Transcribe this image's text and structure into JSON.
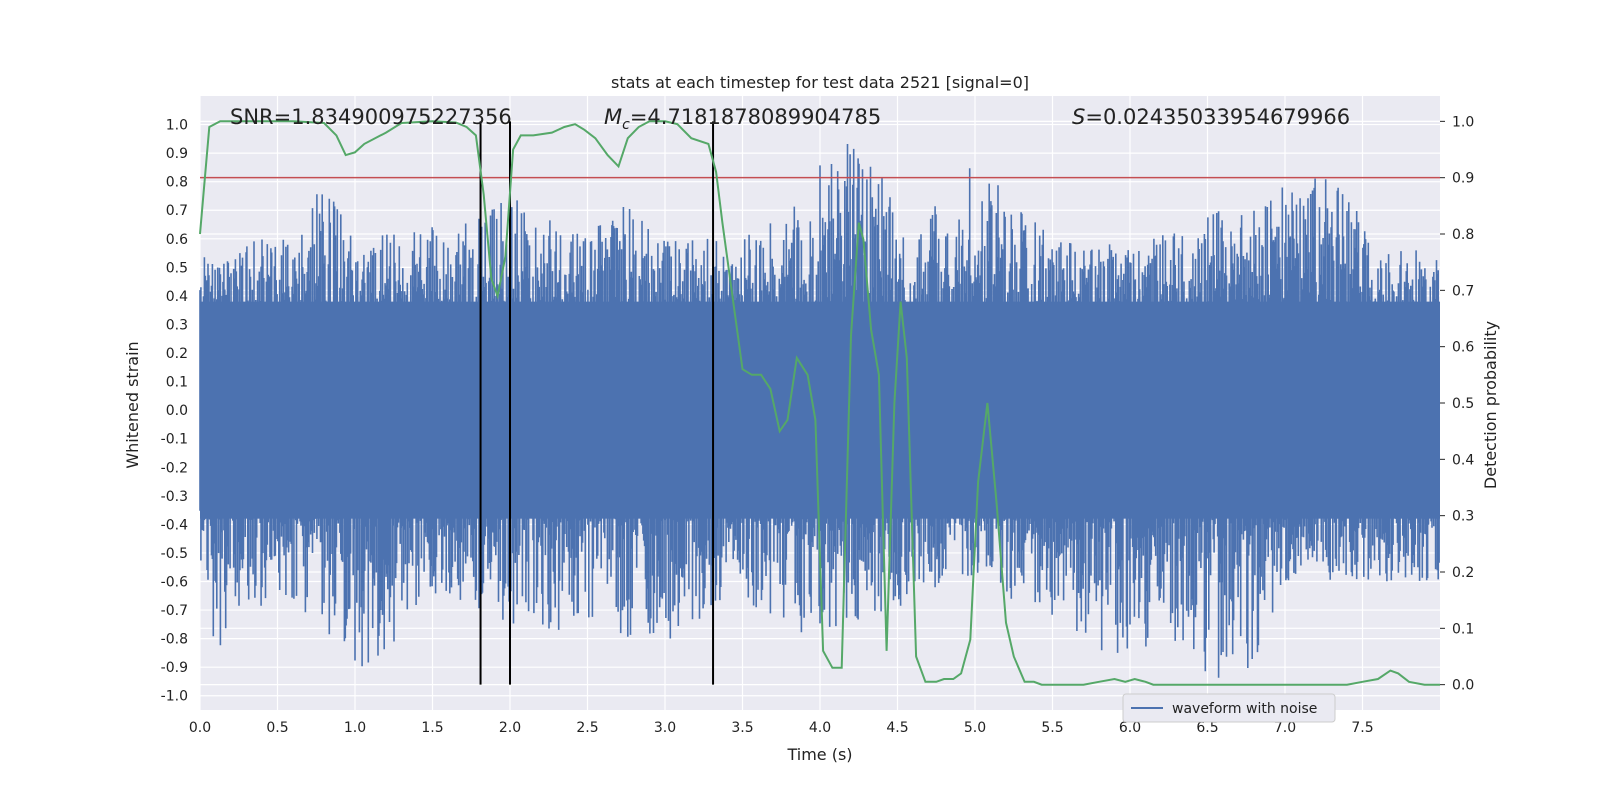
{
  "chart_data": {
    "type": "line",
    "title": "stats at each timestep for test data 2521 [signal=0]",
    "xlabel": "Time (s)",
    "ylabel": "Whitened strain",
    "y2label": "Detection probability",
    "xlim": [
      0.0,
      8.0
    ],
    "ylim": [
      -1.05,
      1.1
    ],
    "y2lim": [
      -0.045,
      1.045
    ],
    "xticks": [
      "0.0",
      "0.5",
      "1.0",
      "1.5",
      "2.0",
      "2.5",
      "3.0",
      "3.5",
      "4.0",
      "4.5",
      "5.0",
      "5.5",
      "6.0",
      "6.5",
      "7.0",
      "7.5"
    ],
    "yticks": [
      "1.0",
      "0.9",
      "0.8",
      "0.7",
      "0.6",
      "0.5",
      "0.4",
      "0.3",
      "0.2",
      "0.1",
      "0.0",
      "-0.1",
      "-0.2",
      "-0.3",
      "-0.4",
      "-0.5",
      "-0.6",
      "-0.7",
      "-0.8",
      "-0.9",
      "-1.0"
    ],
    "y2ticks": [
      "1.0",
      "0.9",
      "0.8",
      "0.7",
      "0.6",
      "0.5",
      "0.4",
      "0.3",
      "0.2",
      "0.1",
      "0.0"
    ],
    "grid": true,
    "legend_position": "bottom-right",
    "annotations": {
      "snr": "SNR=1.834900975227356",
      "mc": "=4.718187808990478​5",
      "mc_symbol": "M",
      "mc_sub": "c",
      "s": "=0.02435033954679966",
      "s_symbol": "S"
    },
    "series": [
      {
        "name": "waveform with noise",
        "axis": "left",
        "color": "#4c72b0",
        "kind": "noise",
        "upper_envelope": [
          [
            0.0,
            0.6
          ],
          [
            0.5,
            0.6
          ],
          [
            0.8,
            0.79
          ],
          [
            1.0,
            0.6
          ],
          [
            1.5,
            0.65
          ],
          [
            2.0,
            0.75
          ],
          [
            2.5,
            0.6
          ],
          [
            2.7,
            0.75
          ],
          [
            3.0,
            0.6
          ],
          [
            3.5,
            0.6
          ],
          [
            4.1,
            0.92
          ],
          [
            4.27,
            0.96
          ],
          [
            4.6,
            0.6
          ],
          [
            4.95,
            0.9
          ],
          [
            5.5,
            0.6
          ],
          [
            6.0,
            0.6
          ],
          [
            7.27,
            0.84
          ],
          [
            7.6,
            0.6
          ],
          [
            8.0,
            0.55
          ]
        ],
        "lower_envelope": [
          [
            0.0,
            -0.6
          ],
          [
            0.1,
            -0.85
          ],
          [
            0.5,
            -0.65
          ],
          [
            1.0,
            -0.93
          ],
          [
            1.27,
            -0.82
          ],
          [
            1.5,
            -0.65
          ],
          [
            2.0,
            -0.75
          ],
          [
            3.0,
            -0.82
          ],
          [
            3.5,
            -0.65
          ],
          [
            3.85,
            -0.82
          ],
          [
            4.2,
            -0.75
          ],
          [
            5.0,
            -0.6
          ],
          [
            5.9,
            -0.87
          ],
          [
            6.3,
            -0.85
          ],
          [
            6.72,
            -1.0
          ],
          [
            7.0,
            -0.6
          ],
          [
            8.0,
            -0.6
          ]
        ]
      },
      {
        "name": "",
        "axis": "right",
        "color": "#55a868",
        "x": [
          0.0,
          0.06,
          0.13,
          0.2,
          0.4,
          0.6,
          0.8,
          0.88,
          0.94,
          1.0,
          1.06,
          1.2,
          1.3,
          1.5,
          1.65,
          1.72,
          1.78,
          1.83,
          1.88,
          1.92,
          1.97,
          2.02,
          2.07,
          2.15,
          2.27,
          2.35,
          2.42,
          2.48,
          2.55,
          2.63,
          2.7,
          2.76,
          2.83,
          2.9,
          3.0,
          3.08,
          3.17,
          3.28,
          3.33,
          3.37,
          3.44,
          3.5,
          3.56,
          3.62,
          3.68,
          3.74,
          3.79,
          3.85,
          3.92,
          3.97,
          4.02,
          4.08,
          4.14,
          4.2,
          4.25,
          4.28,
          4.33,
          4.38,
          4.43,
          4.48,
          4.52,
          4.56,
          4.62,
          4.68,
          4.75,
          4.8,
          4.86,
          4.91,
          4.97,
          5.02,
          5.08,
          5.14,
          5.2,
          5.25,
          5.32,
          5.38,
          5.43,
          5.5,
          5.6,
          5.7,
          5.8,
          5.9,
          5.97,
          6.03,
          6.1,
          6.15,
          6.25,
          6.4,
          6.5,
          6.6,
          6.7,
          6.8,
          6.9,
          7.0,
          7.1,
          7.2,
          7.3,
          7.4,
          7.5,
          7.6,
          7.68,
          7.73,
          7.8,
          7.9,
          8.0
        ],
        "values": [
          0.8,
          0.99,
          1.0,
          1.0,
          1.0,
          1.0,
          0.997,
          0.975,
          0.94,
          0.945,
          0.96,
          0.98,
          0.997,
          1.0,
          0.998,
          0.99,
          0.975,
          0.87,
          0.72,
          0.69,
          0.76,
          0.95,
          0.975,
          0.975,
          0.98,
          0.99,
          0.995,
          0.985,
          0.97,
          0.94,
          0.92,
          0.97,
          0.99,
          1.0,
          1.0,
          0.995,
          0.97,
          0.96,
          0.91,
          0.82,
          0.68,
          0.56,
          0.55,
          0.55,
          0.525,
          0.45,
          0.47,
          0.58,
          0.55,
          0.47,
          0.06,
          0.03,
          0.03,
          0.62,
          0.82,
          0.79,
          0.63,
          0.55,
          0.06,
          0.5,
          0.68,
          0.58,
          0.05,
          0.005,
          0.005,
          0.01,
          0.01,
          0.02,
          0.08,
          0.36,
          0.5,
          0.32,
          0.11,
          0.05,
          0.005,
          0.005,
          0.0,
          0.0,
          0.0,
          0.0,
          0.005,
          0.01,
          0.005,
          0.01,
          0.005,
          0.0,
          0.0,
          0.0,
          0.0,
          0.0,
          0.0,
          0.0,
          0.0,
          0.0,
          0.0,
          0.0,
          0.0,
          0.0,
          0.005,
          0.01,
          0.025,
          0.02,
          0.005,
          0.0,
          0.0
        ]
      }
    ],
    "threshold": {
      "axis": "right",
      "value": 0.9,
      "color": "#c44e52"
    },
    "vertical_lines": [
      1.81,
      2.0,
      3.31
    ]
  }
}
